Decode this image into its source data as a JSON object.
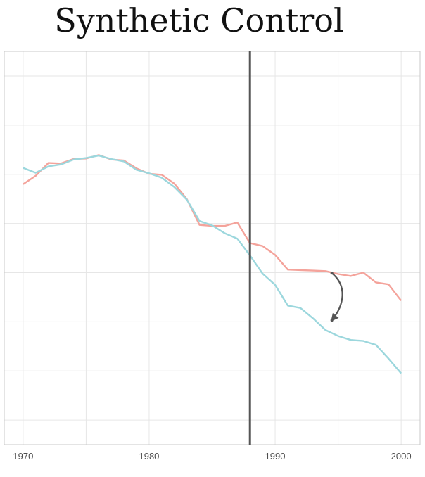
{
  "chart_data": {
    "type": "line",
    "title": "Synthetic Control",
    "xlabel": "",
    "ylabel": "",
    "xlim": [
      1968.5,
      2001.5
    ],
    "ylim": [
      -0.5,
      7.5
    ],
    "xticks": [
      1970,
      1980,
      1990,
      2000
    ],
    "x": [
      1970,
      1971,
      1972,
      1973,
      1974,
      1975,
      1976,
      1977,
      1978,
      1979,
      1980,
      1981,
      1982,
      1983,
      1984,
      1985,
      1986,
      1987,
      1988,
      1989,
      1990,
      1991,
      1992,
      1993,
      1994,
      1995,
      1996,
      1997,
      1998,
      1999,
      2000
    ],
    "series": [
      {
        "color": "#f4a39b",
        "values": [
          4.8,
          4.97,
          5.23,
          5.22,
          5.31,
          5.32,
          5.39,
          5.3,
          5.28,
          5.12,
          5.01,
          4.99,
          4.81,
          4.49,
          3.97,
          3.95,
          3.95,
          4.02,
          3.6,
          3.54,
          3.36,
          3.06,
          3.05,
          3.04,
          3.03,
          2.97,
          2.93,
          3.0,
          2.8,
          2.76,
          2.43
        ]
      },
      {
        "color": "#9cd7dd",
        "values": [
          5.13,
          5.03,
          5.16,
          5.2,
          5.3,
          5.33,
          5.38,
          5.31,
          5.26,
          5.09,
          5.02,
          4.93,
          4.74,
          4.48,
          4.05,
          3.96,
          3.8,
          3.69,
          3.35,
          2.98,
          2.75,
          2.33,
          2.28,
          2.07,
          1.83,
          1.71,
          1.63,
          1.61,
          1.53,
          1.25,
          0.95
        ]
      }
    ],
    "vline": 1988,
    "arrow": {
      "x": 1994.5,
      "from": 2.99,
      "to": 2.03
    },
    "grid": true,
    "colors": {
      "vline": "#555555",
      "arrow": "#555555",
      "grid": "#e6e6e6",
      "frame": "#c8c8c8"
    }
  }
}
